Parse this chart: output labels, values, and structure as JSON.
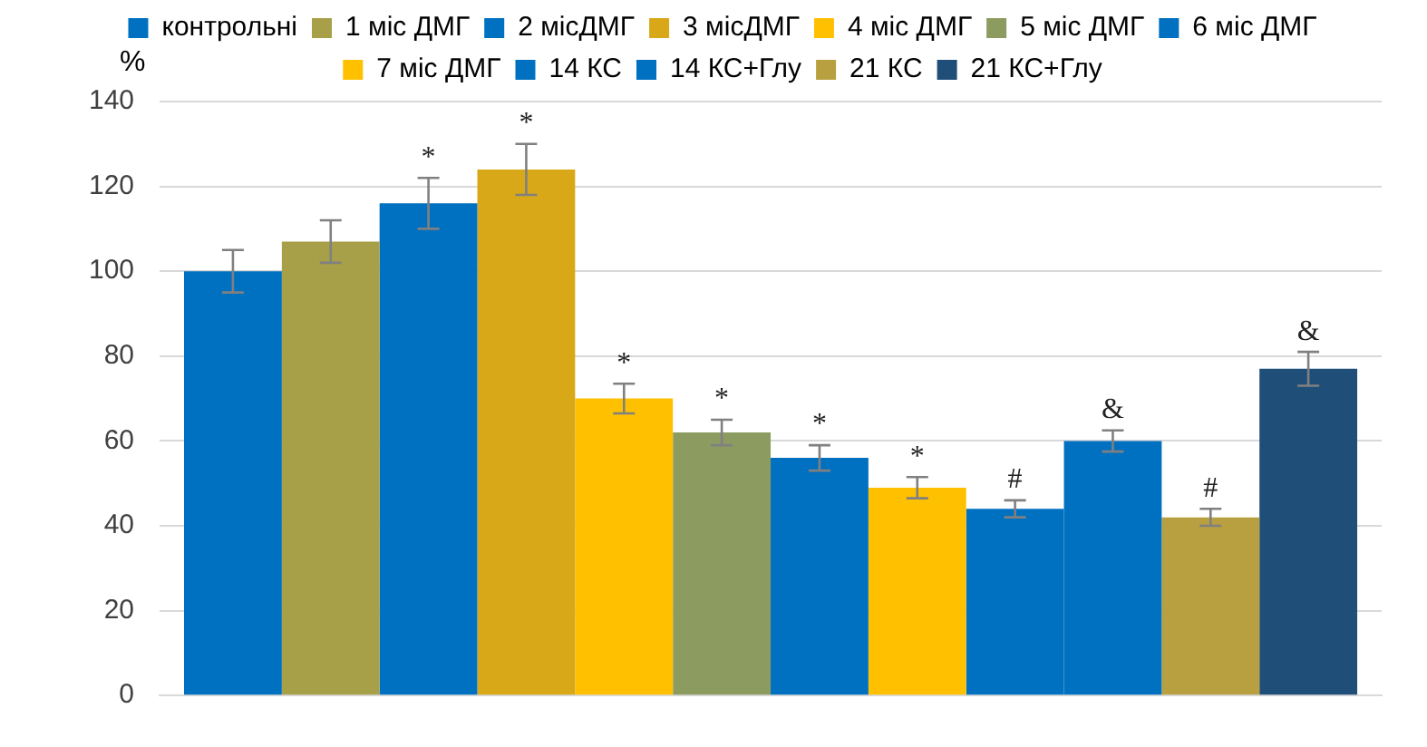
{
  "chart_data": {
    "type": "bar",
    "ylabel": "%",
    "categories": [
      null
    ],
    "series": [
      {
        "name": "контрольні",
        "color": "#0070c0",
        "values": [
          100
        ],
        "errors": [
          5
        ]
      },
      {
        "name": "1 міс ДМГ",
        "color": "#a8a048",
        "values": [
          107
        ],
        "errors": [
          5
        ]
      },
      {
        "name": "2 місДМГ",
        "color": "#0070c0",
        "values": [
          116
        ],
        "errors": [
          6
        ],
        "value_labels": [
          "*"
        ]
      },
      {
        "name": "3 місДМГ",
        "color": "#d8a818",
        "values": [
          124
        ],
        "errors": [
          6
        ],
        "value_labels": [
          "*"
        ]
      },
      {
        "name": "4 міс ДМГ",
        "color": "#ffc000",
        "values": [
          70
        ],
        "errors": [
          3.5
        ],
        "value_labels": [
          "*"
        ]
      },
      {
        "name": "5 міс ДМГ",
        "color": "#8c9c60",
        "values": [
          62
        ],
        "errors": [
          3
        ],
        "value_labels": [
          "*"
        ]
      },
      {
        "name": "6 міс ДМГ",
        "color": "#0070c0",
        "values": [
          56
        ],
        "errors": [
          3
        ],
        "value_labels": [
          "*"
        ]
      },
      {
        "name": "7 міс ДМГ",
        "color": "#ffc000",
        "values": [
          49
        ],
        "errors": [
          2.5
        ],
        "value_labels": [
          "*"
        ]
      },
      {
        "name": "14 КС",
        "color": "#0070c0",
        "values": [
          44
        ],
        "errors": [
          2
        ],
        "value_labels": [
          "#"
        ]
      },
      {
        "name": "14 КС+Глу",
        "color": "#0070c0",
        "values": [
          60
        ],
        "errors": [
          2.5
        ],
        "value_labels": [
          "&"
        ]
      },
      {
        "name": "21 КС",
        "color": "#b8a040",
        "values": [
          42
        ],
        "errors": [
          2
        ],
        "value_labels": [
          "#"
        ]
      },
      {
        "name": "21 КС+Глу",
        "color": "#1f4e79",
        "values": [
          77
        ],
        "errors": [
          4
        ],
        "value_labels": [
          "&"
        ]
      }
    ],
    "ylim": [
      0,
      140
    ],
    "yticks": [
      0,
      20,
      40,
      60,
      80,
      100,
      120,
      140
    ],
    "grid": "y",
    "legend": "top"
  }
}
